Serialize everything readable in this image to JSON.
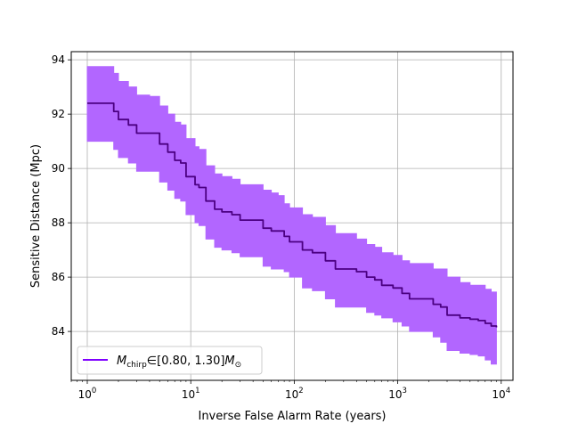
{
  "chart_data": {
    "type": "line",
    "xlabel": "Inverse False Alarm Rate (years)",
    "ylabel": "Sensitive Distance (Mpc)",
    "xscale": "log",
    "xlim": [
      0.7,
      13000
    ],
    "ylim": [
      82.2,
      94.3
    ],
    "grid": true,
    "legend_position": "lower-left",
    "x_ticks": [
      {
        "value": 1,
        "base": "10",
        "exp": "0"
      },
      {
        "value": 10,
        "base": "10",
        "exp": "1"
      },
      {
        "value": 100,
        "base": "10",
        "exp": "2"
      },
      {
        "value": 1000,
        "base": "10",
        "exp": "3"
      },
      {
        "value": 10000,
        "base": "10",
        "exp": "4"
      }
    ],
    "y_ticks": [
      {
        "value": 84,
        "label": "84"
      },
      {
        "value": 86,
        "label": "86"
      },
      {
        "value": 88,
        "label": "88"
      },
      {
        "value": 90,
        "label": "90"
      },
      {
        "value": 92,
        "label": "92"
      },
      {
        "value": 94,
        "label": "94"
      }
    ],
    "series": [
      {
        "legend": {
          "base": "M",
          "sub": "chirp",
          "range": "∈[0.80, 1.30]",
          "unit": "M",
          "unit_sub": "⊙"
        },
        "color": "#4b0082",
        "band_color": "#b266ff",
        "legend_color": "#7f00ff",
        "x": [
          1,
          1.5,
          1.8,
          2,
          2.5,
          3,
          4,
          5,
          6,
          7,
          8,
          9,
          11,
          12,
          14,
          17,
          20,
          25,
          30,
          40,
          50,
          60,
          70,
          80,
          90,
          120,
          150,
          200,
          250,
          400,
          500,
          600,
          700,
          900,
          1100,
          1300,
          1800,
          2200,
          2600,
          3000,
          4000,
          5000,
          6000,
          7000,
          8000,
          9000
        ],
        "y": [
          92.4,
          92.4,
          92.1,
          91.8,
          91.6,
          91.3,
          91.3,
          90.9,
          90.6,
          90.3,
          90.2,
          89.7,
          89.4,
          89.3,
          88.8,
          88.5,
          88.4,
          88.3,
          88.1,
          88.1,
          87.8,
          87.7,
          87.7,
          87.5,
          87.3,
          87.0,
          86.9,
          86.6,
          86.3,
          86.2,
          86.0,
          85.9,
          85.7,
          85.6,
          85.4,
          85.2,
          85.2,
          85.0,
          84.9,
          84.6,
          84.5,
          84.45,
          84.4,
          84.3,
          84.2,
          84.15
        ],
        "upper": [
          93.75,
          93.75,
          93.5,
          93.2,
          93.0,
          92.7,
          92.65,
          92.3,
          92.0,
          91.7,
          91.6,
          91.1,
          90.8,
          90.7,
          90.1,
          89.8,
          89.7,
          89.6,
          89.4,
          89.4,
          89.2,
          89.1,
          89.0,
          88.7,
          88.55,
          88.3,
          88.2,
          87.9,
          87.6,
          87.4,
          87.2,
          87.1,
          86.9,
          86.8,
          86.6,
          86.5,
          86.5,
          86.3,
          86.3,
          86.0,
          85.8,
          85.7,
          85.7,
          85.55,
          85.45,
          85.45
        ],
        "lower": [
          91.0,
          91.0,
          90.7,
          90.4,
          90.2,
          89.9,
          89.9,
          89.5,
          89.2,
          88.9,
          88.8,
          88.3,
          88.0,
          87.9,
          87.4,
          87.1,
          87.0,
          86.9,
          86.75,
          86.75,
          86.4,
          86.3,
          86.3,
          86.2,
          86.0,
          85.6,
          85.5,
          85.2,
          84.9,
          84.9,
          84.7,
          84.6,
          84.5,
          84.35,
          84.2,
          84.0,
          84.0,
          83.8,
          83.6,
          83.3,
          83.2,
          83.15,
          83.1,
          82.95,
          82.8,
          82.8
        ]
      }
    ]
  }
}
